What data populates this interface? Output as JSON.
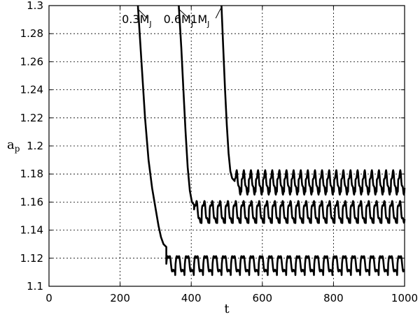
{
  "chart_data": {
    "type": "line",
    "title": "",
    "xlabel": "t",
    "ylabel": "a",
    "ylabel_sub": "p",
    "xlim": [
      0,
      1000
    ],
    "ylim": [
      1.1,
      1.3
    ],
    "xticks": [
      0,
      200,
      400,
      600,
      800,
      1000
    ],
    "yticks": [
      1.1,
      1.12,
      1.14,
      1.16,
      1.18,
      1.2,
      1.22,
      1.24,
      1.26,
      1.28,
      1.3
    ],
    "grid": true,
    "series_color": "#000000",
    "series": [
      {
        "label_main": "0.3M",
        "label_sub": "J",
        "decay": [
          [
            250,
            1.3
          ],
          [
            260,
            1.26
          ],
          [
            270,
            1.22
          ],
          [
            280,
            1.19
          ],
          [
            290,
            1.17
          ],
          [
            300,
            1.155
          ],
          [
            308,
            1.143
          ],
          [
            315,
            1.135
          ],
          [
            322,
            1.13
          ],
          [
            330,
            1.128
          ]
        ],
        "osc_start": 330,
        "osc_center": 1.116,
        "osc_amp": 0.006,
        "osc_period": 26,
        "label_at": [
          205,
          1.29
        ],
        "leader_to": [
          248,
          1.298
        ]
      },
      {
        "label_main": "0.6M",
        "label_sub": "J",
        "decay": [
          [
            365,
            1.3
          ],
          [
            372,
            1.27
          ],
          [
            378,
            1.24
          ],
          [
            384,
            1.21
          ],
          [
            390,
            1.185
          ],
          [
            396,
            1.168
          ],
          [
            402,
            1.16
          ],
          [
            408,
            1.158
          ]
        ],
        "osc_start": 408,
        "osc_center": 1.153,
        "osc_amp": 0.007,
        "osc_period": 22,
        "label_at": [
          322,
          1.29
        ],
        "leader_to": [
          363,
          1.298
        ]
      },
      {
        "label_main": "1M",
        "label_sub": "J",
        "decay": [
          [
            485,
            1.3
          ],
          [
            490,
            1.27
          ],
          [
            495,
            1.24
          ],
          [
            500,
            1.215
          ],
          [
            505,
            1.195
          ],
          [
            510,
            1.182
          ],
          [
            515,
            1.177
          ],
          [
            522,
            1.175
          ]
        ],
        "osc_start": 522,
        "osc_center": 1.174,
        "osc_amp": 0.007,
        "osc_period": 20,
        "label_at": [
          398,
          1.29
        ],
        "leader_to": [
          483,
          1.298
        ]
      }
    ]
  }
}
